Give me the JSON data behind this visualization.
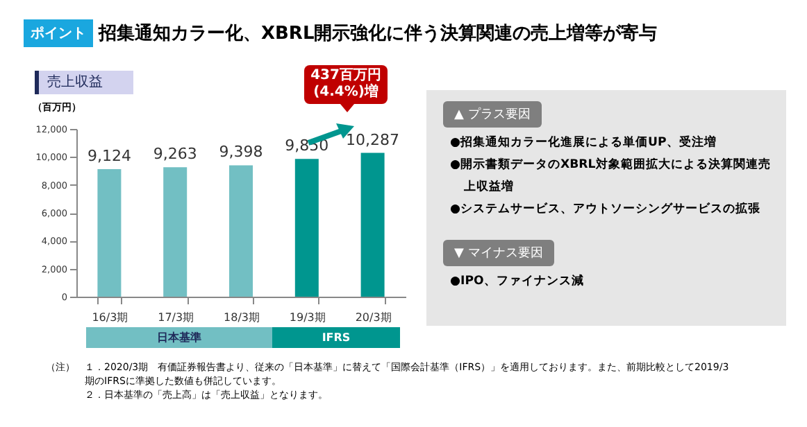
{
  "chart_data": [
    {
      "type": "bar",
      "title": "招集通知カラー化、XBRL開示強化に伴う決算関連の売上増等が寄与",
      "subtitle": "売上収益",
      "ylabel": "（百万円）",
      "categories": [
        "16/3期",
        "17/3期",
        "18/3期",
        "19/3期",
        "20/3期"
      ],
      "values": [
        9124,
        9263,
        9398,
        9850,
        10287
      ],
      "colors": [
        "#72bfc3",
        "#72bfc3",
        "#72bfc3",
        "#00968f",
        "#00968f"
      ],
      "value_labels": [
        "9,124",
        "9,263",
        "9,398",
        "9,850",
        "10,287"
      ],
      "ylim": [
        0,
        12000
      ],
      "yticks": [
        0,
        {
          "value": 2000,
          "label": "2,000"
        },
        {
          "value": 4000,
          "label": "4,000"
        },
        {
          "value": 6000,
          "label": "6,000"
        },
        {
          "value": 8000,
          "label": "8,000"
        },
        {
          "value": 10000,
          "label": "10,000"
        },
        {
          "value": 12000,
          "label": "12,000"
        }
      ],
      "annotations": [
        "ポイント",
        "437百万円\n(4.4%)増",
        "日本基準",
        "IFRS",
        "（注）",
        "１．2020/3期　有価証券報告書より、従来の「日本基準」に替えて「国際会計基準（IFRS）」を適用しております。また、前期比較として2019/3期のIFRSに準拠した数値も併記しています。",
        "２．日本基準の「売上高」は「売上収益」となります。"
      ]
    },
    {
      "type": "other",
      "annotations": [
        "▲ プラス要因",
        "●招集通知カラー化進展による単価UP、受注増",
        "●開示書類データのXBRL対象範囲拡大による決算関連売上収益増",
        "●システムサービス、アウトソーシングサービスの拡張",
        "▼ マイナス要因",
        "●IPO、ファイナンス減"
      ]
    }
  ]
}
